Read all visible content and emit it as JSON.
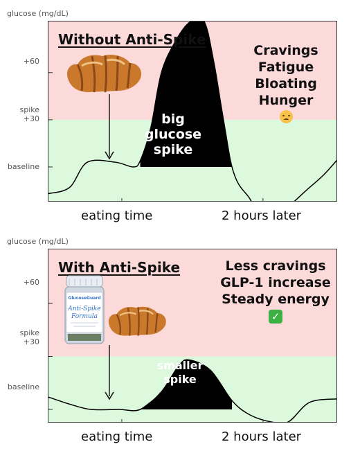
{
  "chart_data": [
    {
      "type": "area",
      "title": "Without Anti-Spike",
      "ylabel": "glucose (mg/dL)",
      "y_ticks": [
        "+60",
        "spike +30",
        "baseline"
      ],
      "x_ticks": [
        "eating time",
        "2 hours later"
      ],
      "zones": [
        {
          "name": "above spike +30",
          "color": "#fddada"
        },
        {
          "name": "below spike +30",
          "color": "#ddf9dd"
        }
      ],
      "x": [
        0,
        0.3,
        0.55,
        0.95,
        1.2,
        1.3,
        1.45,
        1.6,
        1.8,
        2.0,
        2.2,
        2.35,
        2.6,
        2.85,
        3.0,
        3.2,
        3.4,
        3.65,
        3.9,
        4.1
      ],
      "y": [
        -17,
        -13,
        3,
        3,
        0,
        4,
        25,
        60,
        80,
        92,
        93,
        65,
        0,
        -20,
        -30,
        -30,
        -25,
        -15,
        -5,
        5
      ],
      "spike_label": [
        "big",
        "glucose",
        "spike"
      ],
      "effects": [
        "Cravings",
        "Fatigue",
        "Bloating",
        "Hunger"
      ],
      "effects_emoji": "sad-face-icon",
      "colors": {
        "spike_fill": "#000000",
        "line": "#000000"
      }
    },
    {
      "type": "area",
      "title": "With Anti-Spike",
      "ylabel": "glucose (mg/dL)",
      "y_ticks": [
        "+60",
        "spike +30",
        "baseline"
      ],
      "x_ticks": [
        "eating time",
        "2 hours later"
      ],
      "zones": [
        {
          "name": "above spike +30",
          "color": "#fddada"
        },
        {
          "name": "below spike +30",
          "color": "#ddf9dd"
        }
      ],
      "x": [
        0,
        0.3,
        0.6,
        1.0,
        1.3,
        1.6,
        1.85,
        2.0,
        2.3,
        2.6,
        2.85,
        3.15,
        3.4,
        3.7,
        4.1
      ],
      "y": [
        7,
        3,
        0,
        0,
        0,
        10,
        25,
        28,
        22,
        5,
        -3,
        -7,
        -7,
        4,
        6
      ],
      "spike_label": [
        "smaller",
        "spike"
      ],
      "effects": [
        "Less cravings",
        "GLP-1 increase",
        "Steady energy"
      ],
      "effects_emoji": "check-mark-icon",
      "product_label": [
        "GlucoseGuard",
        "Anti-Spike",
        "Formula"
      ],
      "colors": {
        "spike_fill": "#000000",
        "line": "#000000"
      }
    }
  ]
}
